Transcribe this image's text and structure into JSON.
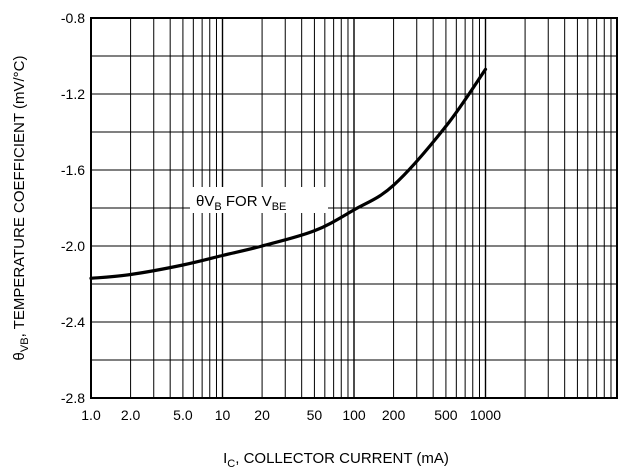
{
  "chart_data": {
    "type": "line",
    "title": "",
    "xscale": "log",
    "xlim": [
      1,
      10000
    ],
    "ylim": [
      -2.8,
      -0.8
    ],
    "xlabel": {
      "main": "I",
      "sub": "C",
      "rest": ", COLLECTOR CURRENT (mA)"
    },
    "ylabel": {
      "main": "θ",
      "sub": "VB",
      "rest": ", TEMPERATURE COEFFICIENT (mV/°C)"
    },
    "x_tick_labels": [
      "1.0",
      "2.0",
      "5.0",
      "10",
      "20",
      "50",
      "100",
      "200",
      "500",
      "1000"
    ],
    "x_tick_values": [
      1,
      2,
      5,
      10,
      20,
      50,
      100,
      200,
      500,
      1000
    ],
    "y_ticks": [
      -0.8,
      -1.2,
      -1.6,
      -2.0,
      -2.4,
      -2.8
    ],
    "y_tick_labels": [
      "-0.8",
      "-1.2",
      "-1.6",
      "-2.0",
      "-2.4",
      "-2.8"
    ],
    "grid": true,
    "series": [
      {
        "name": "θVB FOR VBE",
        "x": [
          1,
          2,
          5,
          10,
          20,
          50,
          100,
          200,
          500,
          1000
        ],
        "y": [
          -2.17,
          -2.15,
          -2.1,
          -2.05,
          -2.0,
          -1.92,
          -1.81,
          -1.68,
          -1.37,
          -1.07
        ]
      }
    ],
    "annotation": {
      "theta": "θV",
      "sub1": "B",
      "mid": " FOR V",
      "sub2": "BE",
      "x": 25,
      "y": -1.81
    }
  }
}
